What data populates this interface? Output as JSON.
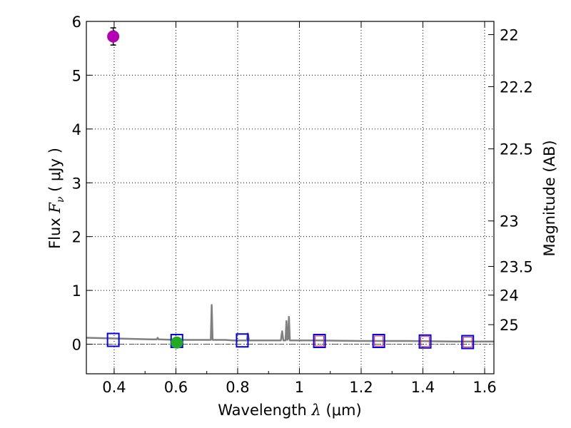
{
  "chart_data": {
    "type": "scatter",
    "title": "",
    "xlabel": {
      "prefix": "Wavelength  ",
      "symbol": "λ",
      "unit": " (μm)"
    },
    "ylabel": {
      "prefix": "Flux  ",
      "symbol": "F",
      "sub": "ν",
      "unit": "  ( μJy )"
    },
    "y2label": "Magnitude (AB)",
    "xlim": [
      0.31,
      1.63
    ],
    "ylim": [
      -0.55,
      6.0
    ],
    "x_ticks": [
      0.4,
      0.6,
      0.8,
      1.0,
      1.2,
      1.4,
      1.6
    ],
    "x_tick_labels": [
      "0.4",
      "0.6",
      "0.8",
      "1",
      "1.2",
      "1.4",
      "1.6"
    ],
    "y_ticks": [
      0,
      1,
      2,
      3,
      4,
      5,
      6
    ],
    "y_tick_labels": [
      "0",
      "1",
      "2",
      "3",
      "4",
      "5",
      "6"
    ],
    "y2_ticks": [
      22,
      22.2,
      22.5,
      23,
      23.5,
      24,
      25
    ],
    "y2_tick_labels": [
      "22",
      "22.2",
      "22.5",
      "23",
      "23.5",
      "24",
      "25"
    ],
    "grid": true,
    "zero_line": true,
    "measurements": [
      {
        "name": "purple-point",
        "x": 0.397,
        "y": 5.72,
        "err": 0.16,
        "color": "#b400b4"
      },
      {
        "name": "green-point",
        "x": 0.603,
        "y": 0.03,
        "err": 0.02,
        "color": "#22aa22"
      }
    ],
    "model_photometry_blue": [
      {
        "x": 0.397,
        "y": 0.08
      },
      {
        "x": 0.603,
        "y": 0.06
      },
      {
        "x": 0.815,
        "y": 0.07
      },
      {
        "x": 1.065,
        "y": 0.06
      },
      {
        "x": 1.257,
        "y": 0.06
      },
      {
        "x": 1.407,
        "y": 0.05
      },
      {
        "x": 1.545,
        "y": 0.04
      }
    ],
    "model_photometry_red": [
      {
        "x": 1.065,
        "y": 0.06
      },
      {
        "x": 1.257,
        "y": 0.06
      },
      {
        "x": 1.407,
        "y": 0.05
      },
      {
        "x": 1.545,
        "y": 0.04
      }
    ],
    "sed_template": {
      "color": "#808080",
      "points": [
        [
          0.31,
          0.12
        ],
        [
          0.38,
          0.11
        ],
        [
          0.45,
          0.1
        ],
        [
          0.52,
          0.09
        ],
        [
          0.538,
          0.09
        ],
        [
          0.541,
          0.12
        ],
        [
          0.544,
          0.09
        ],
        [
          0.6,
          0.08
        ],
        [
          0.66,
          0.08
        ],
        [
          0.713,
          0.08
        ],
        [
          0.716,
          0.73
        ],
        [
          0.719,
          0.08
        ],
        [
          0.76,
          0.08
        ],
        [
          0.785,
          0.07
        ],
        [
          0.8,
          0.07
        ],
        [
          0.83,
          0.07
        ],
        [
          0.833,
          0.2
        ],
        [
          0.837,
          0.07
        ],
        [
          0.9,
          0.07
        ],
        [
          0.94,
          0.07
        ],
        [
          0.944,
          0.24
        ],
        [
          0.948,
          0.07
        ],
        [
          0.955,
          0.07
        ],
        [
          0.958,
          0.43
        ],
        [
          0.961,
          0.08
        ],
        [
          0.963,
          0.1
        ],
        [
          0.966,
          0.51
        ],
        [
          0.969,
          0.07
        ],
        [
          1.05,
          0.07
        ],
        [
          1.2,
          0.06
        ],
        [
          1.35,
          0.06
        ],
        [
          1.5,
          0.05
        ],
        [
          1.63,
          0.05
        ]
      ]
    }
  }
}
